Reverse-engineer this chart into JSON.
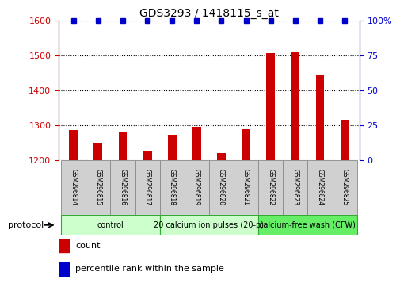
{
  "title": "GDS3293 / 1418115_s_at",
  "samples": [
    "GSM296814",
    "GSM296815",
    "GSM296816",
    "GSM296817",
    "GSM296818",
    "GSM296819",
    "GSM296820",
    "GSM296821",
    "GSM296822",
    "GSM296823",
    "GSM296824",
    "GSM296825"
  ],
  "counts": [
    1285,
    1250,
    1278,
    1225,
    1272,
    1295,
    1220,
    1288,
    1507,
    1510,
    1445,
    1315
  ],
  "percentile_ranks": [
    100,
    100,
    100,
    100,
    100,
    100,
    100,
    100,
    100,
    100,
    100,
    100
  ],
  "ylim_left": [
    1200,
    1600
  ],
  "ylim_right": [
    0,
    100
  ],
  "yticks_left": [
    1200,
    1300,
    1400,
    1500,
    1600
  ],
  "yticks_right": [
    0,
    25,
    50,
    75,
    100
  ],
  "bar_color": "#cc0000",
  "scatter_color": "#0000cc",
  "groups": [
    {
      "label": "control",
      "start": 0,
      "end": 4,
      "color": "#ccffcc",
      "border": "#33aa33"
    },
    {
      "label": "20 calcium ion pulses (20-p)",
      "start": 4,
      "end": 8,
      "color": "#ccffcc",
      "border": "#33aa33"
    },
    {
      "label": "calcium-free wash (CFW)",
      "start": 8,
      "end": 12,
      "color": "#66ee66",
      "border": "#33aa33"
    }
  ],
  "protocol_label": "protocol",
  "legend_count_label": "count",
  "legend_pct_label": "percentile rank within the sample",
  "tick_label_color_left": "#cc0000",
  "tick_label_color_right": "#0000cc",
  "background_color": "#ffffff",
  "grid_color": "#000000",
  "bar_width": 0.35,
  "sample_box_color": "#d0d0d0",
  "sample_box_edge": "#888888"
}
